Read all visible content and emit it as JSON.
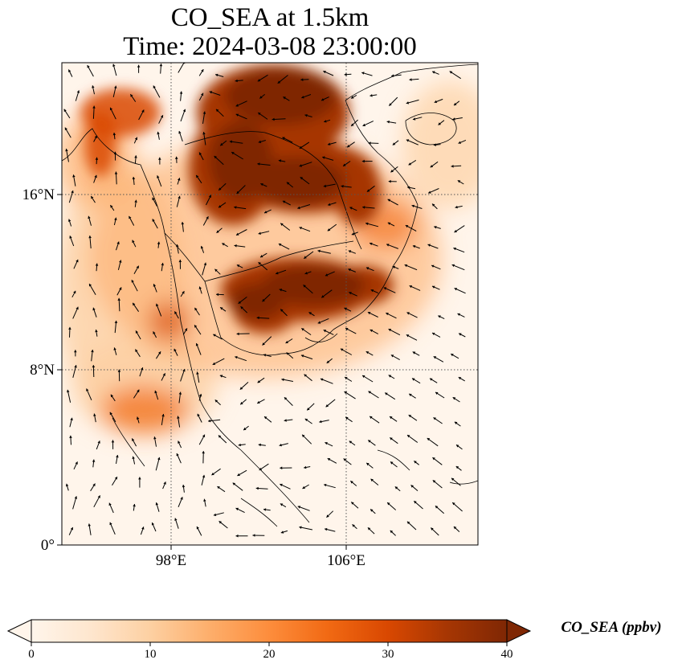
{
  "map": {
    "title_line1": "CO_SEA at 1.5km",
    "title_line2": "Time: 2024-03-08 23:00:00",
    "lat_ticks": [
      "16°N",
      "8°N",
      "0°"
    ],
    "lon_ticks": [
      "98°E",
      "106°E"
    ],
    "lon_range": [
      93,
      112
    ],
    "lat_range": [
      0,
      22
    ],
    "gridlines": true
  },
  "colorbar": {
    "title": "CO_SEA (ppbv)",
    "tick_labels": [
      "0",
      "10",
      "20",
      "30",
      "40"
    ],
    "min": 0,
    "max": 40,
    "extend": "both",
    "colormap": [
      "#fff5eb",
      "#fee6ce",
      "#fdd0a2",
      "#fdae6b",
      "#fd8d3c",
      "#f16913",
      "#d94801",
      "#a63603",
      "#7f2704"
    ]
  }
}
